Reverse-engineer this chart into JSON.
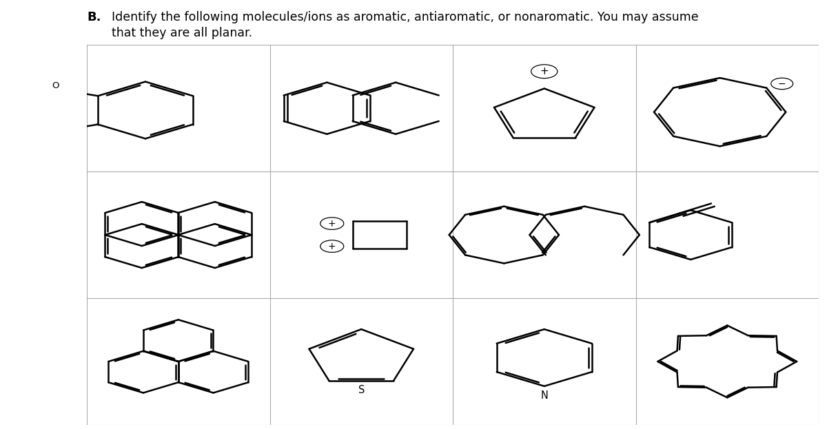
{
  "bg_color": "#ffffff",
  "lw": 1.8,
  "title_bold": "B.",
  "title_main": "Identify the following molecules/ions as aromatic, antiaromatic, or nonaromatic. You may assume",
  "title_sub": "that they are all planar."
}
